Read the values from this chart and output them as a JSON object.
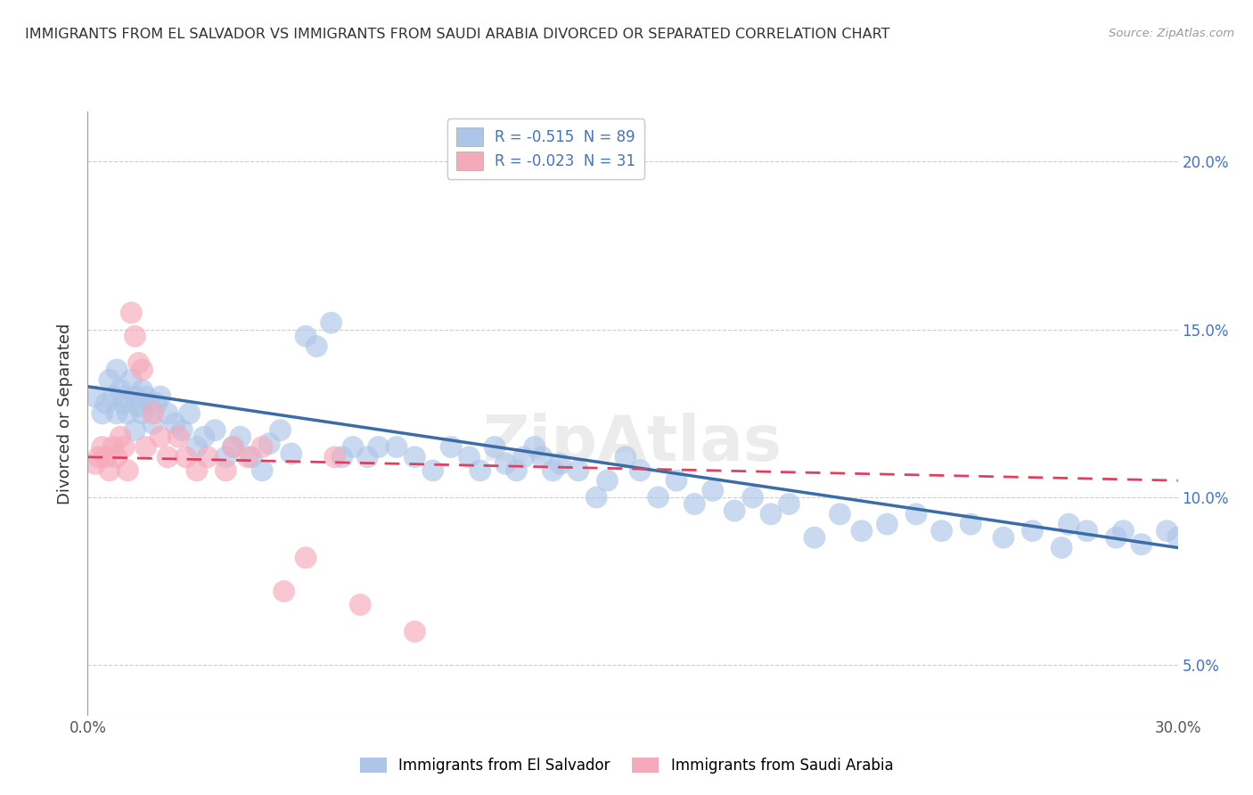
{
  "title": "IMMIGRANTS FROM EL SALVADOR VS IMMIGRANTS FROM SAUDI ARABIA DIVORCED OR SEPARATED CORRELATION CHART",
  "source": "Source: ZipAtlas.com",
  "ylabel": "Divorced or Separated",
  "legend_blue_label": "Immigrants from El Salvador",
  "legend_pink_label": "Immigrants from Saudi Arabia",
  "R_blue": -0.515,
  "N_blue": 89,
  "R_pink": -0.023,
  "N_pink": 31,
  "xlim": [
    0.0,
    0.3
  ],
  "ylim": [
    0.035,
    0.215
  ],
  "x_ticks": [
    0.0,
    0.05,
    0.1,
    0.15,
    0.2,
    0.25,
    0.3
  ],
  "y_ticks": [
    0.05,
    0.1,
    0.15,
    0.2
  ],
  "y_tick_labels": [
    "5.0%",
    "10.0%",
    "15.0%",
    "20.0%"
  ],
  "color_blue": "#adc6e8",
  "color_pink": "#f5aabb",
  "line_color_blue": "#3a6da8",
  "line_color_pink": "#e04060",
  "background_color": "#ffffff",
  "blue_line_start_y": 0.133,
  "blue_line_end_y": 0.085,
  "pink_line_start_y": 0.112,
  "pink_line_end_y": 0.105,
  "blue_x": [
    0.002,
    0.004,
    0.005,
    0.006,
    0.007,
    0.008,
    0.008,
    0.009,
    0.01,
    0.01,
    0.011,
    0.012,
    0.013,
    0.013,
    0.014,
    0.015,
    0.015,
    0.016,
    0.017,
    0.018,
    0.019,
    0.02,
    0.022,
    0.024,
    0.026,
    0.028,
    0.03,
    0.032,
    0.035,
    0.038,
    0.04,
    0.042,
    0.045,
    0.048,
    0.05,
    0.053,
    0.056,
    0.06,
    0.063,
    0.067,
    0.07,
    0.073,
    0.077,
    0.08,
    0.085,
    0.09,
    0.095,
    0.1,
    0.105,
    0.108,
    0.112,
    0.115,
    0.118,
    0.12,
    0.123,
    0.125,
    0.128,
    0.13,
    0.135,
    0.14,
    0.143,
    0.148,
    0.152,
    0.157,
    0.162,
    0.167,
    0.172,
    0.178,
    0.183,
    0.188,
    0.193,
    0.2,
    0.207,
    0.213,
    0.22,
    0.228,
    0.235,
    0.243,
    0.252,
    0.26,
    0.268,
    0.275,
    0.283,
    0.29,
    0.297,
    0.3,
    0.305,
    0.27,
    0.285
  ],
  "blue_y": [
    0.13,
    0.125,
    0.128,
    0.135,
    0.13,
    0.138,
    0.125,
    0.132,
    0.128,
    0.13,
    0.125,
    0.135,
    0.13,
    0.12,
    0.127,
    0.132,
    0.125,
    0.13,
    0.128,
    0.122,
    0.128,
    0.13,
    0.125,
    0.122,
    0.12,
    0.125,
    0.115,
    0.118,
    0.12,
    0.112,
    0.115,
    0.118,
    0.112,
    0.108,
    0.116,
    0.12,
    0.113,
    0.148,
    0.145,
    0.152,
    0.112,
    0.115,
    0.112,
    0.115,
    0.115,
    0.112,
    0.108,
    0.115,
    0.112,
    0.108,
    0.115,
    0.11,
    0.108,
    0.112,
    0.115,
    0.112,
    0.108,
    0.11,
    0.108,
    0.1,
    0.105,
    0.112,
    0.108,
    0.1,
    0.105,
    0.098,
    0.102,
    0.096,
    0.1,
    0.095,
    0.098,
    0.088,
    0.095,
    0.09,
    0.092,
    0.095,
    0.09,
    0.092,
    0.088,
    0.09,
    0.085,
    0.09,
    0.088,
    0.086,
    0.09,
    0.088,
    0.085,
    0.092,
    0.09
  ],
  "pink_x": [
    0.002,
    0.003,
    0.004,
    0.005,
    0.006,
    0.007,
    0.008,
    0.009,
    0.01,
    0.011,
    0.012,
    0.013,
    0.014,
    0.015,
    0.016,
    0.018,
    0.02,
    0.022,
    0.025,
    0.027,
    0.03,
    0.033,
    0.038,
    0.04,
    0.044,
    0.048,
    0.054,
    0.06,
    0.068,
    0.075,
    0.09
  ],
  "pink_y": [
    0.11,
    0.112,
    0.115,
    0.112,
    0.108,
    0.115,
    0.112,
    0.118,
    0.115,
    0.108,
    0.155,
    0.148,
    0.14,
    0.138,
    0.115,
    0.125,
    0.118,
    0.112,
    0.118,
    0.112,
    0.108,
    0.112,
    0.108,
    0.115,
    0.112,
    0.115,
    0.072,
    0.082,
    0.112,
    0.068,
    0.06
  ]
}
